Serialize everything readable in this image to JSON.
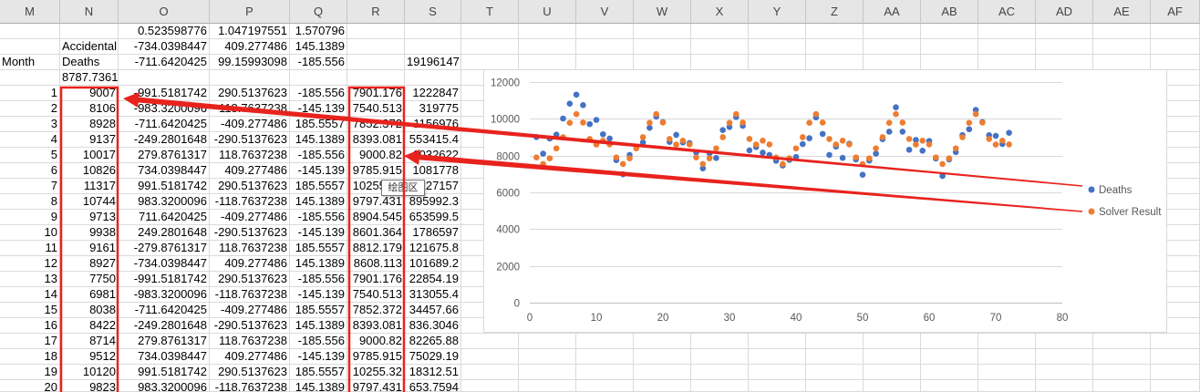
{
  "sheet": {
    "columns": [
      "M",
      "N",
      "O",
      "P",
      "Q",
      "R",
      "S",
      "T",
      "U",
      "V",
      "W",
      "X",
      "Y",
      "Z",
      "AA",
      "AB",
      "AC",
      "AD",
      "AE",
      "AF"
    ],
    "rows": [
      [
        "",
        "",
        "0.523598776",
        "1.047197551",
        "1.570796",
        "",
        ""
      ],
      [
        "",
        "Accidental",
        "-734.0398447",
        "409.277486",
        "145.1389",
        "",
        ""
      ],
      [
        "Month",
        "Deaths",
        "-711.6420425",
        "99.15993098",
        "-185.556",
        "",
        "19196147"
      ],
      [
        "",
        "8787.7361",
        "",
        "",
        "",
        "",
        ""
      ],
      [
        "1",
        "9007",
        "-991.5181742",
        "290.5137623",
        "-185.556",
        "7901.176",
        "1222847"
      ],
      [
        "2",
        "8106",
        "-983.3200096",
        "-118.7637238",
        "-145.139",
        "7540.513",
        "319775"
      ],
      [
        "3",
        "8928",
        "-711.6420425",
        "-409.277486",
        "185.5557",
        "7852.372",
        "1156976"
      ],
      [
        "4",
        "9137",
        "-249.2801648",
        "-290.5137623",
        "145.1389",
        "8393.081",
        "553415.4"
      ],
      [
        "5",
        "10017",
        "279.8761317",
        "118.7637238",
        "-185.556",
        "9000.82",
        "1032622"
      ],
      [
        "6",
        "10826",
        "734.0398447",
        "409.277486",
        "-145.139",
        "9785.915",
        "1081778"
      ],
      [
        "7",
        "11317",
        "991.5181742",
        "290.5137623",
        "185.5557",
        "10255.32",
        "1127157"
      ],
      [
        "8",
        "10744",
        "983.3200096",
        "-118.7637238",
        "145.1389",
        "9797.431",
        "895992.3"
      ],
      [
        "9",
        "9713",
        "711.6420425",
        "-409.277486",
        "-185.556",
        "8904.545",
        "653599.5"
      ],
      [
        "10",
        "9938",
        "249.2801648",
        "-290.5137623",
        "-145.139",
        "8601.364",
        "1786597"
      ],
      [
        "11",
        "9161",
        "-279.8761317",
        "118.7637238",
        "185.5557",
        "8812.179",
        "121675.8"
      ],
      [
        "12",
        "8927",
        "-734.0398447",
        "409.277486",
        "145.1389",
        "8608.113",
        "101689.2"
      ],
      [
        "13",
        "7750",
        "-991.5181742",
        "290.5137623",
        "-185.556",
        "7901.176",
        "22854.19"
      ],
      [
        "14",
        "6981",
        "-983.3200096",
        "-118.7637238",
        "-145.139",
        "7540.513",
        "313055.4"
      ],
      [
        "15",
        "8038",
        "-711.6420425",
        "-409.277486",
        "185.5557",
        "7852.372",
        "34457.66"
      ],
      [
        "16",
        "8422",
        "-249.2801648",
        "-290.5137623",
        "145.1389",
        "8393.081",
        "836.3046"
      ],
      [
        "17",
        "8714",
        "279.8761317",
        "118.7637238",
        "-185.556",
        "9000.82",
        "82265.88"
      ],
      [
        "18",
        "9512",
        "734.0398447",
        "409.277486",
        "-145.139",
        "9785.915",
        "75029.19"
      ],
      [
        "19",
        "10120",
        "991.5181742",
        "290.5137623",
        "185.5557",
        "10255.32",
        "18312.51"
      ],
      [
        "20",
        "9823",
        "983.3200096",
        "-118.7637238",
        "145.1389",
        "9797.431",
        "653.7594"
      ]
    ]
  },
  "tooltip": {
    "text": "绘图区"
  },
  "colors": {
    "annotation": "#e8231d"
  },
  "chart_data": {
    "type": "scatter",
    "x": [
      1,
      2,
      3,
      4,
      5,
      6,
      7,
      8,
      9,
      10,
      11,
      12,
      13,
      14,
      15,
      16,
      17,
      18,
      19,
      20,
      21,
      22,
      23,
      24,
      25,
      26,
      27,
      28,
      29,
      30,
      31,
      32,
      33,
      34,
      35,
      36,
      37,
      38,
      39,
      40,
      41,
      42,
      43,
      44,
      45,
      46,
      47,
      48,
      49,
      50,
      51,
      52,
      53,
      54,
      55,
      56,
      57,
      58,
      59,
      60,
      61,
      62,
      63,
      64,
      65,
      66,
      67,
      68,
      69,
      70,
      71,
      72
    ],
    "series": [
      {
        "name": "Deaths",
        "color": "#4472c4",
        "values": [
          9007,
          8106,
          8928,
          9137,
          10017,
          10826,
          11317,
          10744,
          9713,
          9938,
          9161,
          8927,
          7750,
          6981,
          8038,
          8422,
          8714,
          9512,
          10120,
          9823,
          8743,
          9129,
          8710,
          8680,
          8162,
          7306,
          8124,
          7870,
          9387,
          9556,
          10093,
          9620,
          8285,
          8466,
          8160,
          8034,
          7717,
          7461,
          7767,
          7925,
          8623,
          8945,
          10078,
          9179,
          8037,
          8488,
          7874,
          8647,
          7792,
          6957,
          7726,
          8106,
          8890,
          9299,
          10625,
          9302,
          8314,
          8850,
          8265,
          8796,
          7836,
          6892,
          7791,
          8192,
          9115,
          9434,
          10484,
          9827,
          9110,
          9070,
          8633,
          9240
        ]
      },
      {
        "name": "Solver Result",
        "color": "#ed7d31",
        "values": [
          7901.176,
          7540.513,
          7852.372,
          8393.081,
          9000.82,
          9785.915,
          10255.32,
          9797.431,
          8904.545,
          8601.364,
          8812.179,
          8608.113,
          7901.176,
          7540.513,
          7852.372,
          8393.081,
          9000.82,
          9785.915,
          10255.32,
          9797.431,
          8904.545,
          8601.364,
          8812.179,
          8608.113,
          7901.176,
          7540.513,
          7852.372,
          8393.081,
          9000.82,
          9785.915,
          10255.32,
          9797.431,
          8904.545,
          8601.364,
          8812.179,
          8608.113,
          7901.176,
          7540.513,
          7852.372,
          8393.081,
          9000.82,
          9785.915,
          10255.32,
          9797.431,
          8904.545,
          8601.364,
          8812.179,
          8608.113,
          7901.176,
          7540.513,
          7852.372,
          8393.081,
          9000.82,
          9785.915,
          10255.32,
          9797.431,
          8904.545,
          8601.364,
          8812.179,
          8608.113,
          7901.176,
          7540.513,
          7852.372,
          8393.081,
          9000.82,
          9785.915,
          10255.32,
          9797.431,
          8904.545,
          8601.364,
          8812.179,
          8608.113
        ]
      }
    ],
    "xlim": [
      0,
      80
    ],
    "ylim": [
      0,
      12000
    ],
    "xticks": [
      "0",
      "10",
      "20",
      "30",
      "40",
      "50",
      "60",
      "70",
      "80"
    ],
    "yticks": [
      "0",
      "2000",
      "4000",
      "6000",
      "8000",
      "10000",
      "12000"
    ],
    "grid": "horizontal",
    "legend": "right"
  }
}
